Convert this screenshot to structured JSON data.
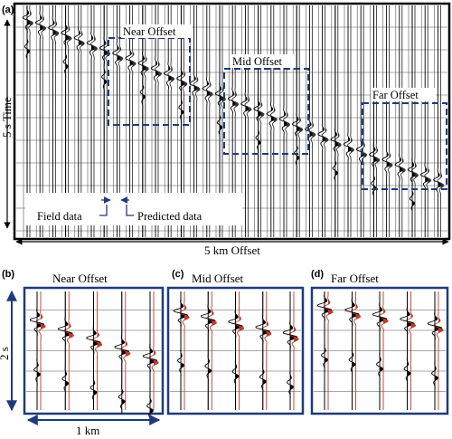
{
  "panel_a": {
    "letter": "(a)",
    "y_axis_label": "5 s Time",
    "x_axis_label": "5 km Offset",
    "box_labels": {
      "near": "Near Offset",
      "mid": "Mid Offset",
      "far": "Far Offset"
    },
    "legend": {
      "field": "Field data",
      "predicted": "Predicted data"
    }
  },
  "panel_b": {
    "letter": "(b)",
    "title": "Near Offset",
    "time_label": "2 s",
    "offset_label": "1 km"
  },
  "panel_c": {
    "letter": "(c)",
    "title": "Mid Offset"
  },
  "panel_d": {
    "letter": "(d)",
    "title": "Far Offset"
  },
  "colors": {
    "frame": "#000000",
    "box_dash": "#1f3a7a",
    "inset_frame": "#1f3a7a",
    "arrow": "#1f3a7a",
    "predicted_trace": "#c0392b"
  }
}
